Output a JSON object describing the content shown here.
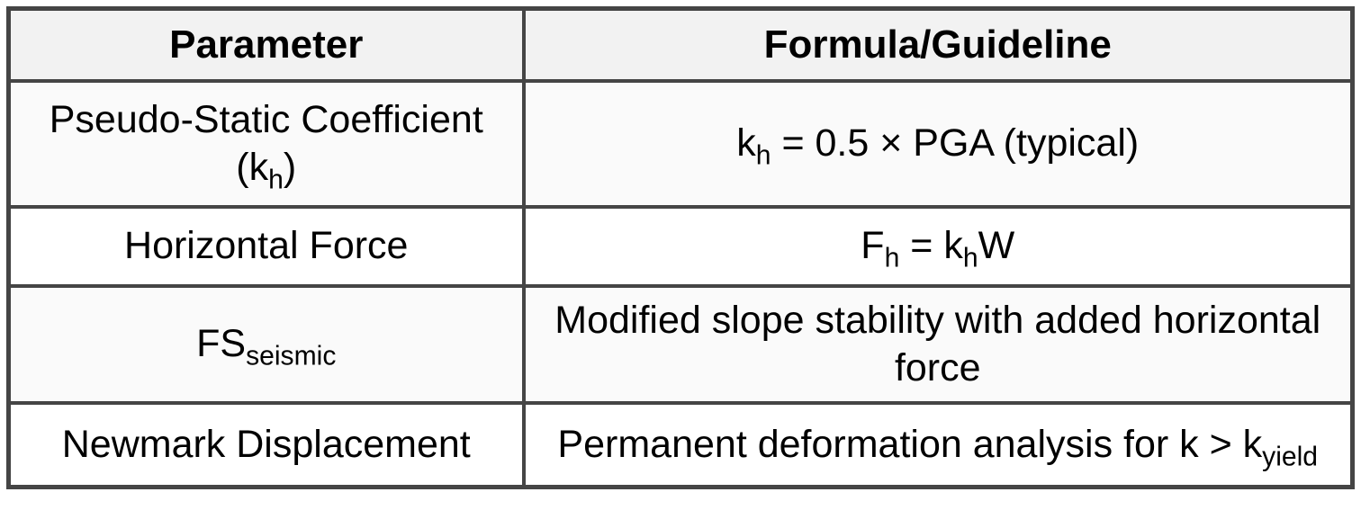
{
  "table": {
    "header": {
      "parameter": "Parameter",
      "formula": "Formula/Guideline"
    },
    "rows": [
      {
        "parameter": [
          {
            "t": "Pseudo-Static Coefficient"
          },
          {
            "br": true
          },
          {
            "t": "(k"
          },
          {
            "t": "h",
            "sub": true
          },
          {
            "t": ")"
          }
        ],
        "formula": [
          {
            "t": "k"
          },
          {
            "t": "h",
            "sub": true
          },
          {
            "t": " = 0.5 × PGA (typical)"
          }
        ]
      },
      {
        "parameter": [
          {
            "t": "Horizontal Force"
          }
        ],
        "formula": [
          {
            "t": "F"
          },
          {
            "t": "h",
            "sub": true
          },
          {
            "t": " = k"
          },
          {
            "t": "h",
            "sub": true
          },
          {
            "t": "W"
          }
        ]
      },
      {
        "parameter": [
          {
            "t": "FS"
          },
          {
            "t": "seismic",
            "sub": true
          }
        ],
        "formula": [
          {
            "t": "Modified slope stability with added horizontal"
          },
          {
            "br": true
          },
          {
            "t": "force"
          }
        ]
      },
      {
        "parameter": [
          {
            "t": "Newmark Displacement"
          }
        ],
        "formula": [
          {
            "t": "Permanent deformation analysis for k > k"
          },
          {
            "t": "yield",
            "sub": true
          }
        ]
      }
    ],
    "colors": {
      "border": "#454545",
      "header_bg": "#f2f2f2",
      "row_alt_bg": "#fafafa",
      "row_bg": "#ffffff",
      "text": "#000000"
    }
  }
}
